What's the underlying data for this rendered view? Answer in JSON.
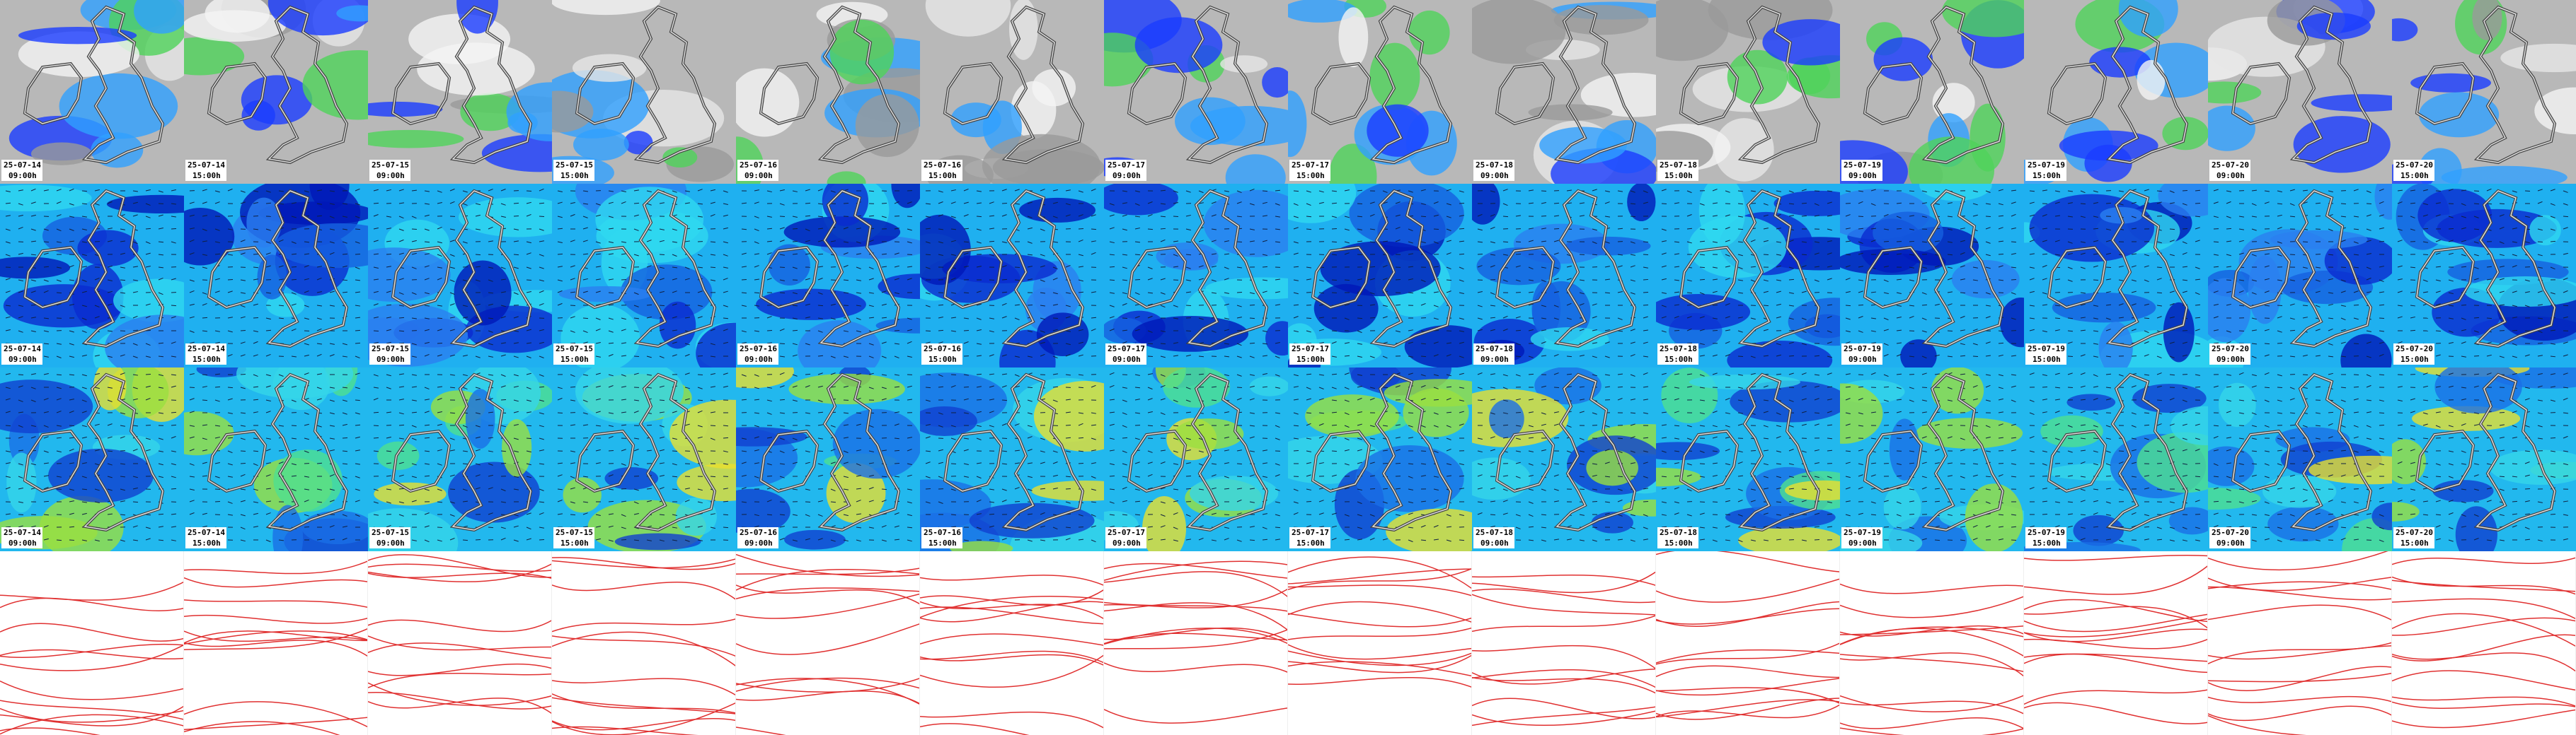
{
  "panels": [
    {
      "date": "25-07-14",
      "time": "09:00h"
    },
    {
      "date": "25-07-14",
      "time": "15:00h"
    },
    {
      "date": "25-07-15",
      "time": "09:00h"
    },
    {
      "date": "25-07-15",
      "time": "15:00h"
    },
    {
      "date": "25-07-16",
      "time": "09:00h"
    },
    {
      "date": "25-07-16",
      "time": "15:00h"
    },
    {
      "date": "25-07-17",
      "time": "09:00h"
    },
    {
      "date": "25-07-17",
      "time": "15:00h"
    },
    {
      "date": "25-07-18",
      "time": "09:00h"
    },
    {
      "date": "25-07-18",
      "time": "15:00h"
    },
    {
      "date": "25-07-19",
      "time": "09:00h"
    },
    {
      "date": "25-07-19",
      "time": "15:00h"
    },
    {
      "date": "25-07-20",
      "time": "09:00h"
    },
    {
      "date": "25-07-20",
      "time": "15:00h"
    }
  ]
}
